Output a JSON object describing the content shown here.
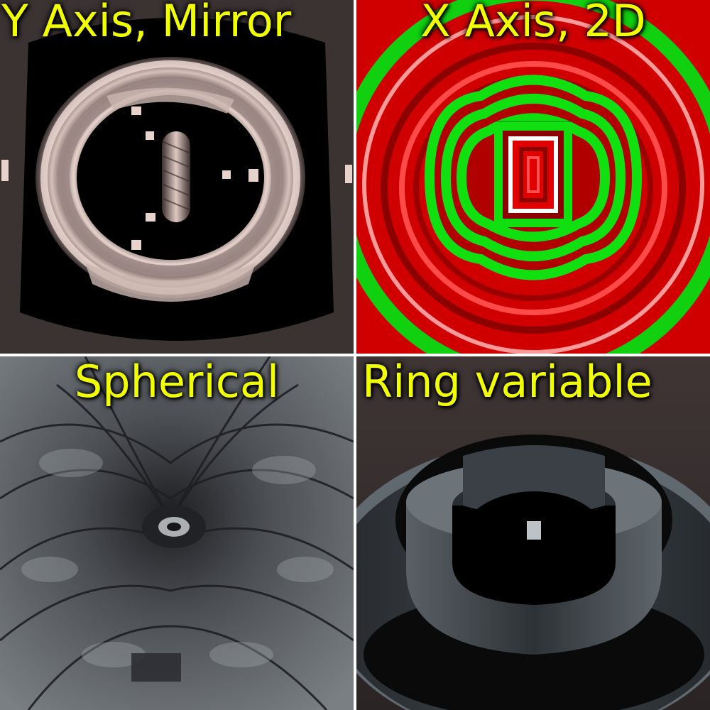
{
  "panels": [
    {
      "label": "Y Axis, Mirror"
    },
    {
      "label": "X Axis, 2D"
    },
    {
      "label": "Spherical"
    },
    {
      "label": "Ring variable"
    }
  ],
  "colors": {
    "text": "#f2ff00",
    "metal_light": "#e8d2cc",
    "metal_mid": "#8f7f7c",
    "green": "#11e011",
    "red": "#e00000",
    "slate": "#5b666d"
  }
}
